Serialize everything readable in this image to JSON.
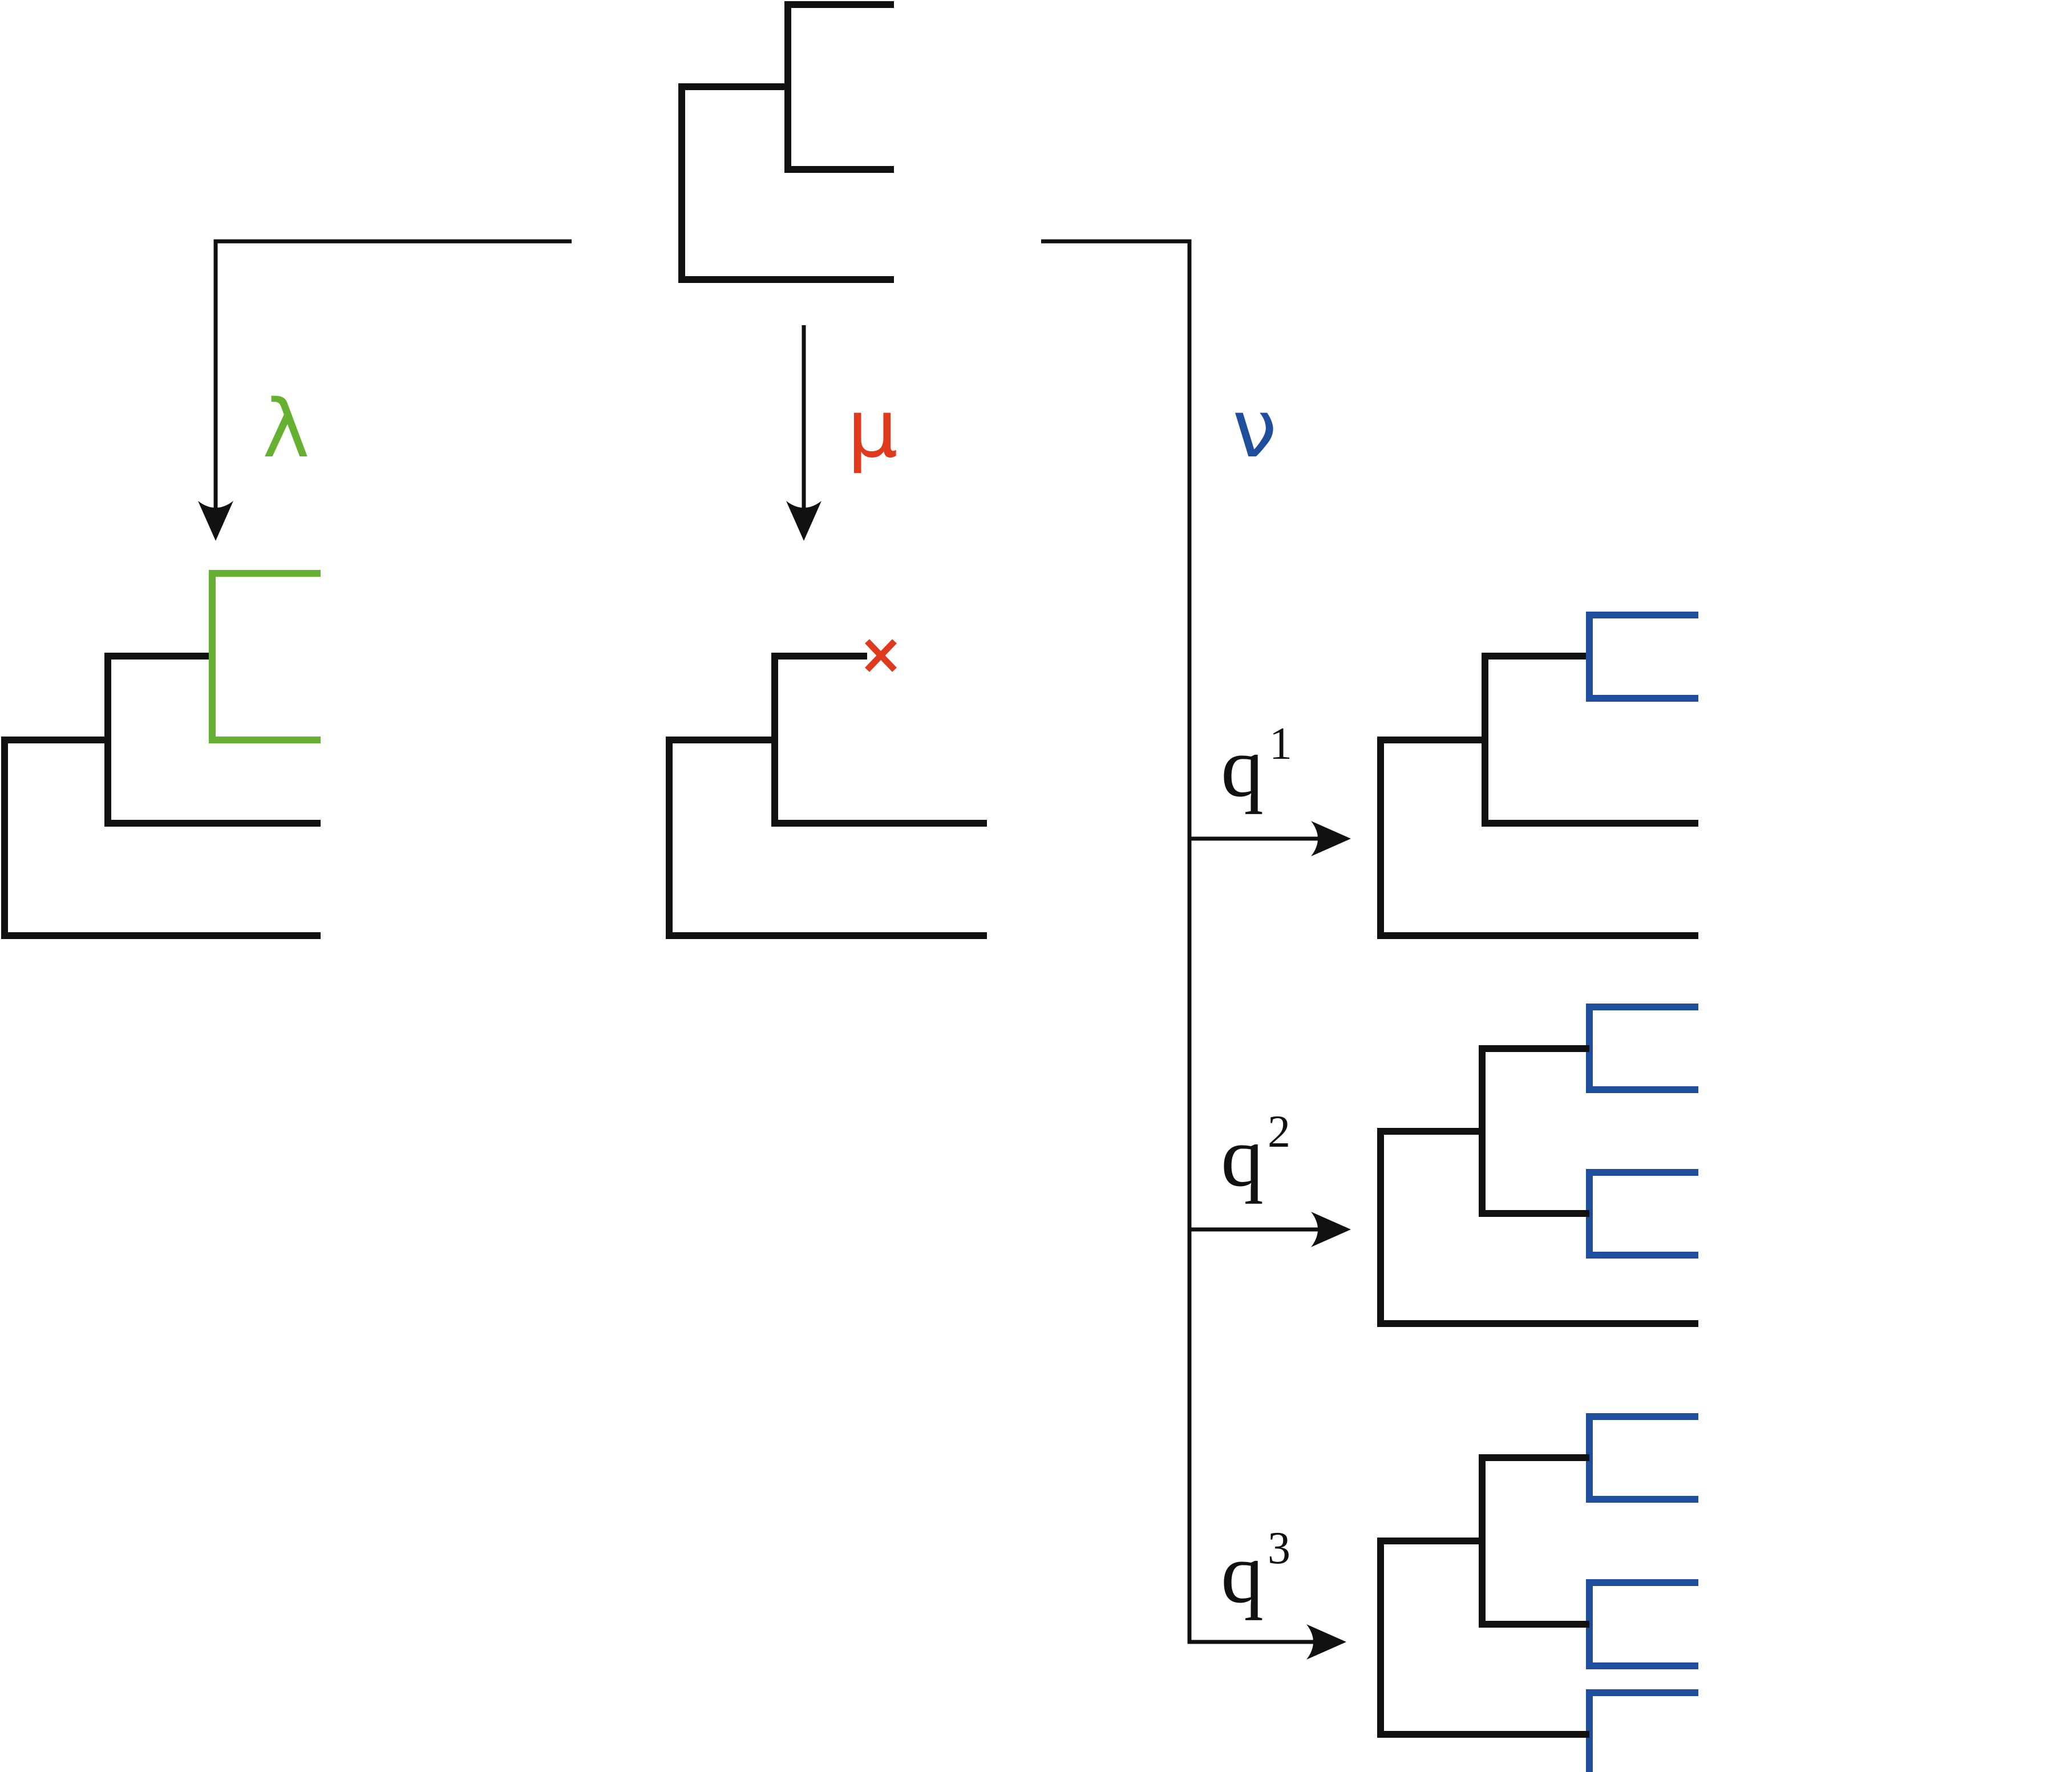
{
  "labels": {
    "lambda": "λ",
    "mu": "μ",
    "nu": "ν",
    "q_base": "q",
    "q1_exp": "1",
    "q2_exp": "2",
    "q3_exp": "3"
  },
  "colors": {
    "lambda": "#66B132",
    "mu": "#E03A1E",
    "nu": "#1F4E9C",
    "black": "#111111"
  },
  "icons": {
    "extinction_mark": "cross-icon"
  }
}
